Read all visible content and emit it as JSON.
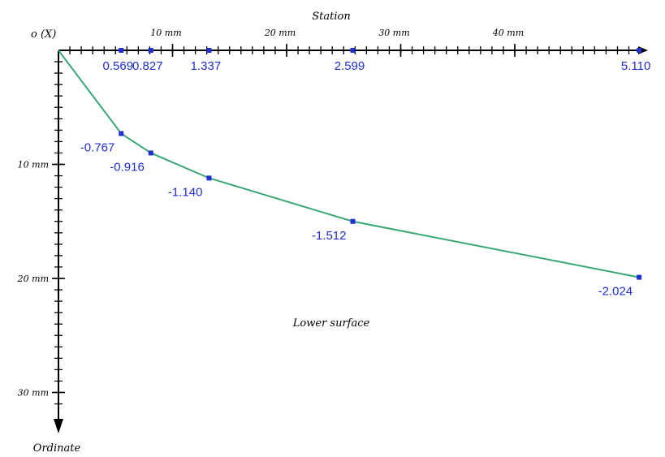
{
  "diagram": {
    "x_axis_title": "Station",
    "y_axis_title": "Ordinate",
    "origin_label": "o (X)",
    "surface_label": "Lower surface",
    "x_ticks": [
      {
        "value": 10,
        "label": "10 mm"
      },
      {
        "value": 20,
        "label": "20 mm"
      },
      {
        "value": 30,
        "label": "30 mm"
      },
      {
        "value": 40,
        "label": "40 mm"
      }
    ],
    "y_ticks": [
      {
        "value": 10,
        "label": "10 mm"
      },
      {
        "value": 20,
        "label": "20 mm"
      },
      {
        "value": 30,
        "label": "30 mm"
      }
    ],
    "stations": [
      {
        "label": "0.569",
        "x": 5.5
      },
      {
        "label": "0.827",
        "x": 8.1
      },
      {
        "label": "1.337",
        "x": 13.2
      },
      {
        "label": "2.599",
        "x": 25.8
      },
      {
        "label": "5.110",
        "x": 50.9
      }
    ],
    "ordinates": [
      {
        "label": "-0.767",
        "x": 5.5,
        "y": 7.3
      },
      {
        "label": "-0.916",
        "x": 8.1,
        "y": 9.0
      },
      {
        "label": "-1.140",
        "x": 13.2,
        "y": 11.2
      },
      {
        "label": "-1.512",
        "x": 25.8,
        "y": 15.0
      },
      {
        "label": "-2.024",
        "x": 50.9,
        "y": 19.9
      }
    ],
    "colors": {
      "axis": "#000000",
      "curve": "#3aa776",
      "marker": "#1f2fd0",
      "value_text": "#1f2fd0"
    }
  }
}
